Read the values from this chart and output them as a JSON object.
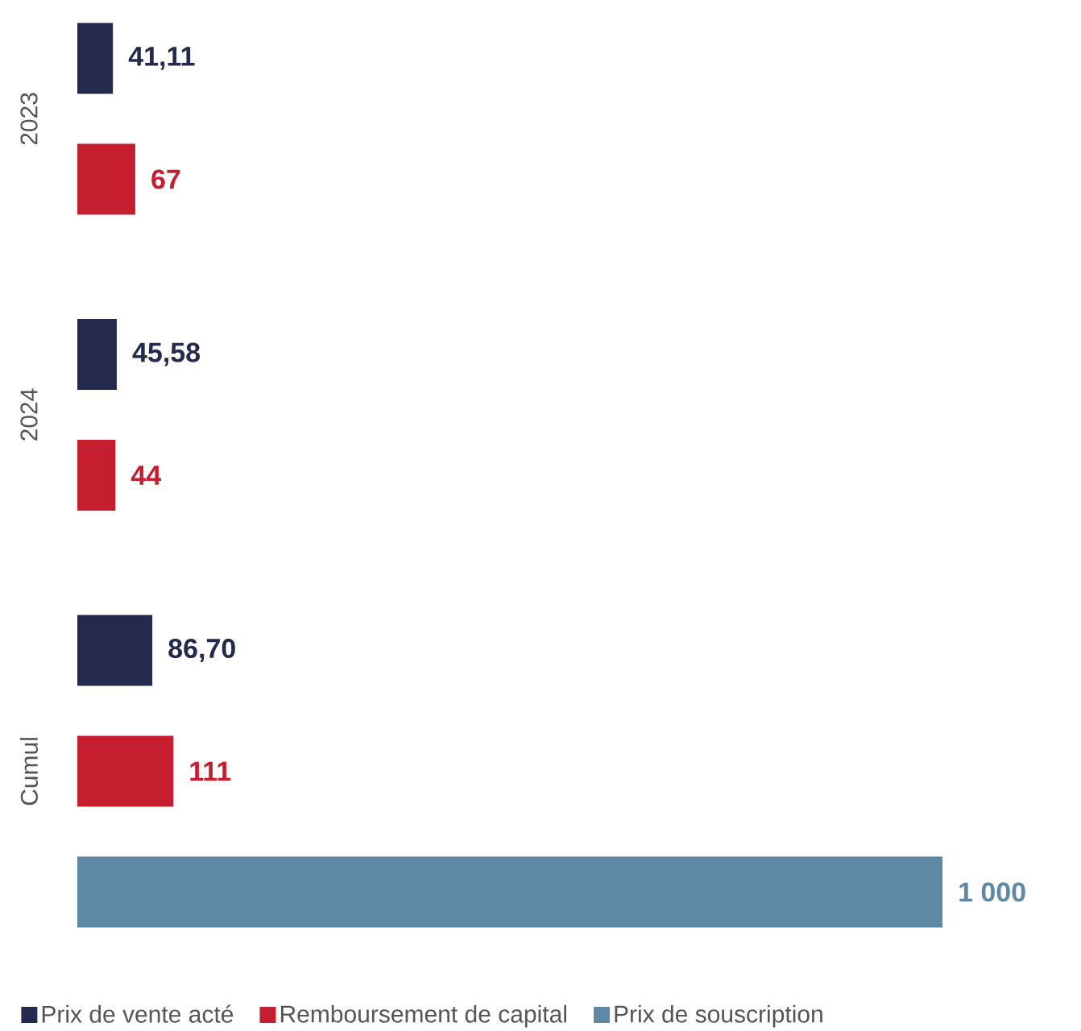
{
  "chart_data": {
    "type": "bar",
    "orientation": "horizontal",
    "categories": [
      "2023",
      "2024",
      "Cumul"
    ],
    "series": [
      {
        "name": "Prix de vente acté",
        "color": "#232a4e",
        "values": [
          41.11,
          45.58,
          86.7
        ],
        "value_labels": [
          "41,11",
          "45,58",
          "86,70"
        ]
      },
      {
        "name": "Remboursement de capital",
        "color": "#c41e2f",
        "values": [
          67,
          44,
          111
        ],
        "value_labels": [
          "67",
          "44",
          "111"
        ]
      },
      {
        "name": "Prix de souscription",
        "color": "#5f88a5",
        "values": [
          null,
          null,
          1000
        ],
        "value_labels": [
          null,
          null,
          "1 000"
        ]
      }
    ],
    "xlim": [
      0,
      1000
    ],
    "tick_labels": "y",
    "legend": "bottom"
  }
}
